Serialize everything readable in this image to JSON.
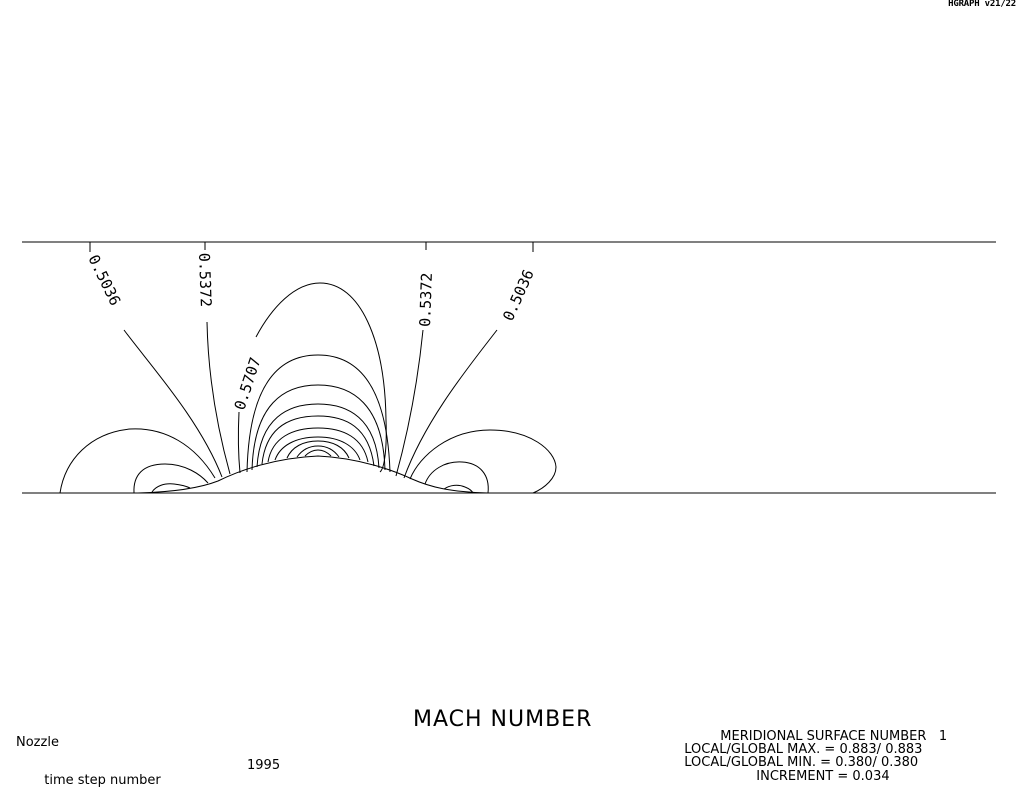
{
  "header": {
    "version": "HGRAPH v21/22"
  },
  "chart_data": {
    "type": "contour",
    "title": "MACH NUMBER",
    "quantity": "Mach number",
    "case_name": "Nozzle",
    "timestep_label": "time step number",
    "timestep_value": "1995",
    "surface_label": "MERIDIONAL SURFACE NUMBER",
    "surface_number": "1",
    "max_label": "LOCAL/GLOBAL MAX. = ",
    "local_max": "0.883",
    "global_max": "0.883",
    "min_label": "LOCAL/GLOBAL MIN. = ",
    "local_min": "0.380",
    "global_min": "0.380",
    "increment_label": "INCREMENT = ",
    "increment": "0.034",
    "contour_labels": [
      "0.5036",
      "0.5372",
      "0.5707",
      "0.5372",
      "0.5036"
    ],
    "colors": {
      "line": "#000000",
      "background": "#ffffff"
    }
  }
}
